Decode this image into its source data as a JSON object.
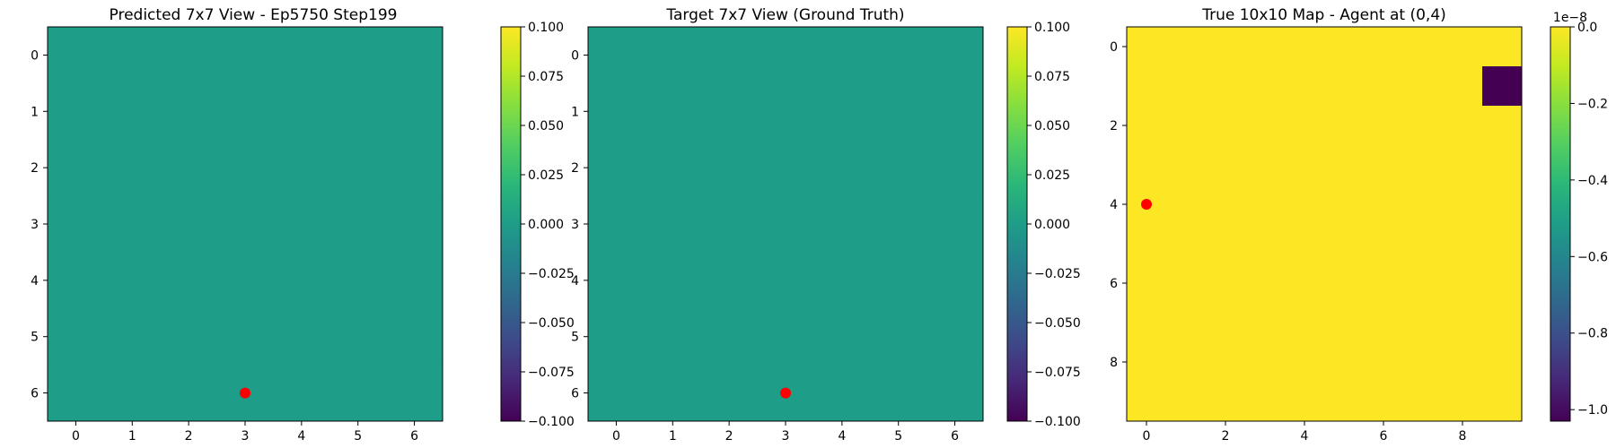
{
  "chart_data": [
    {
      "type": "heatmap",
      "title": "Predicted 7x7 View - Ep5750 Step199",
      "grid_size": [
        7,
        7
      ],
      "matrix": [
        [
          0,
          0,
          0,
          0,
          0,
          0,
          0
        ],
        [
          0,
          0,
          0,
          0,
          0,
          0,
          0
        ],
        [
          0,
          0,
          0,
          0,
          0,
          0,
          0
        ],
        [
          0,
          0,
          0,
          0,
          0,
          0,
          0
        ],
        [
          0,
          0,
          0,
          0,
          0,
          0,
          0
        ],
        [
          0,
          0,
          0,
          0,
          0,
          0,
          0
        ],
        [
          0,
          0,
          0,
          0,
          0,
          0,
          0
        ]
      ],
      "x_ticks": [
        "0",
        "1",
        "2",
        "3",
        "4",
        "5",
        "6"
      ],
      "y_ticks": [
        "0",
        "1",
        "2",
        "3",
        "4",
        "5",
        "6"
      ],
      "colorbar": {
        "vmin": -0.1,
        "vmax": 0.1,
        "colormap": "viridis",
        "ticks": [
          -0.1,
          -0.075,
          -0.05,
          -0.025,
          0,
          0.025,
          0.05,
          0.075,
          0.1
        ],
        "tick_labels": [
          "−0.100",
          "−0.075",
          "−0.050",
          "−0.025",
          "0.000",
          "0.025",
          "0.050",
          "0.075",
          "0.100"
        ]
      },
      "marker": {
        "x": 3,
        "y": 6,
        "color": "#ff0000"
      }
    },
    {
      "type": "heatmap",
      "title": "Target 7x7 View (Ground Truth)",
      "grid_size": [
        7,
        7
      ],
      "matrix": [
        [
          0,
          0,
          0,
          0,
          0,
          0,
          0
        ],
        [
          0,
          0,
          0,
          0,
          0,
          0,
          0
        ],
        [
          0,
          0,
          0,
          0,
          0,
          0,
          0
        ],
        [
          0,
          0,
          0,
          0,
          0,
          0,
          0
        ],
        [
          0,
          0,
          0,
          0,
          0,
          0,
          0
        ],
        [
          0,
          0,
          0,
          0,
          0,
          0,
          0
        ],
        [
          0,
          0,
          0,
          0,
          0,
          0,
          0
        ]
      ],
      "x_ticks": [
        "0",
        "1",
        "2",
        "3",
        "4",
        "5",
        "6"
      ],
      "y_ticks": [
        "0",
        "1",
        "2",
        "3",
        "4",
        "5",
        "6"
      ],
      "colorbar": {
        "vmin": -0.1,
        "vmax": 0.1,
        "colormap": "viridis",
        "ticks": [
          -0.1,
          -0.075,
          -0.05,
          -0.025,
          0,
          0.025,
          0.05,
          0.075,
          0.1
        ],
        "tick_labels": [
          "−0.100",
          "−0.075",
          "−0.050",
          "−0.025",
          "0.000",
          "0.025",
          "0.050",
          "0.075",
          "0.100"
        ]
      },
      "marker": {
        "x": 3,
        "y": 6,
        "color": "#ff0000"
      }
    },
    {
      "type": "heatmap",
      "title": "True 10x10 Map - Agent at (0,4)",
      "grid_size": [
        10,
        10
      ],
      "matrix": [
        [
          0,
          0,
          0,
          0,
          0,
          0,
          0,
          0,
          0,
          0
        ],
        [
          0,
          0,
          0,
          0,
          0,
          0,
          0,
          0,
          0,
          -1.03e-08
        ],
        [
          0,
          0,
          0,
          0,
          0,
          0,
          0,
          0,
          0,
          0
        ],
        [
          0,
          0,
          0,
          0,
          0,
          0,
          0,
          0,
          0,
          0
        ],
        [
          0,
          0,
          0,
          0,
          0,
          0,
          0,
          0,
          0,
          0
        ],
        [
          0,
          0,
          0,
          0,
          0,
          0,
          0,
          0,
          0,
          0
        ],
        [
          0,
          0,
          0,
          0,
          0,
          0,
          0,
          0,
          0,
          0
        ],
        [
          0,
          0,
          0,
          0,
          0,
          0,
          0,
          0,
          0,
          0
        ],
        [
          0,
          0,
          0,
          0,
          0,
          0,
          0,
          0,
          0,
          0
        ],
        [
          0,
          0,
          0,
          0,
          0,
          0,
          0,
          0,
          0,
          0
        ]
      ],
      "x_ticks": [
        "0",
        "2",
        "4",
        "6",
        "8"
      ],
      "y_ticks": [
        "0",
        "2",
        "4",
        "6",
        "8"
      ],
      "tick_step": 2,
      "colorbar": {
        "vmin": -1.03e-08,
        "vmax": 0,
        "colormap": "viridis",
        "ticks": [
          -1e-08,
          -8e-09,
          -6e-09,
          -4e-09,
          -2e-09,
          0
        ],
        "tick_labels": [
          "−1.0",
          "−0.8",
          "−0.6",
          "−0.4",
          "−0.2",
          "0.0"
        ],
        "offset_label": "1e−8"
      },
      "marker": {
        "x": 0,
        "y": 4,
        "color": "#ff0000"
      }
    }
  ]
}
